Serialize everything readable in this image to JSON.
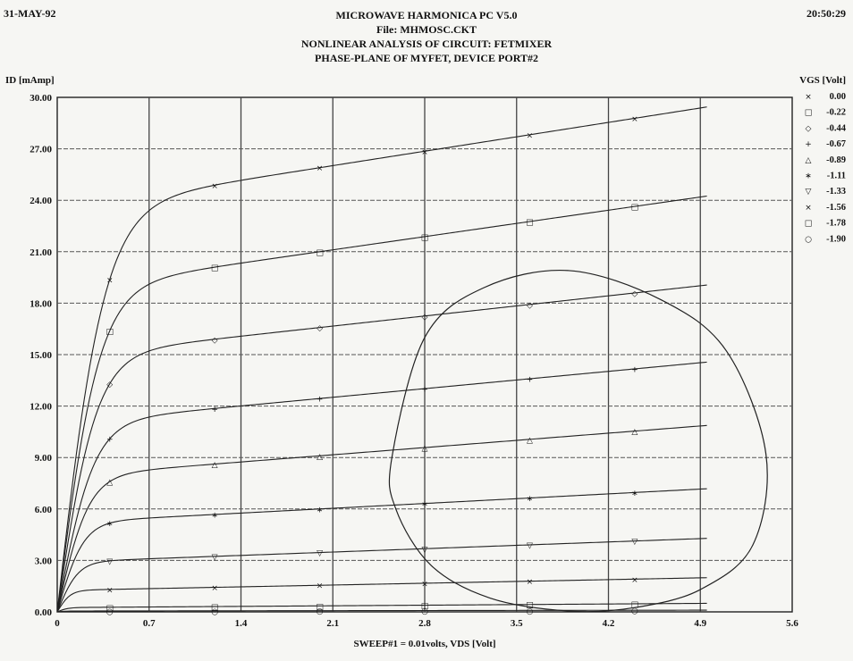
{
  "header": {
    "date": "31-MAY-92",
    "time": "20:50:29",
    "line1": "MICROWAVE HARMONICA PC V5.0",
    "line2": "File: MHMOSC.CKT",
    "line3": "NONLINEAR ANALYSIS OF CIRCUIT: FETMIXER",
    "line4": "PHASE-PLANE OF MYFET, DEVICE PORT#2"
  },
  "chart_data": {
    "type": "line",
    "title": "PHASE-PLANE OF MYFET, DEVICE PORT#2",
    "ylabel": "ID [mAmp]",
    "xlabel": "SWEEP#1 = 0.01volts, VDS [Volt]",
    "legend_title": "VGS [Volt]",
    "legend_position": "right",
    "grid": true,
    "xlim": [
      0,
      5.6
    ],
    "ylim": [
      0,
      30
    ],
    "x_ticks": [
      "0",
      "0.7",
      "1.4",
      "2.1",
      "2.8",
      "3.5",
      "4.2",
      "4.9",
      "5.6"
    ],
    "y_ticks": [
      "0.00",
      "3.00",
      "6.00",
      "9.00",
      "12.00",
      "15.00",
      "18.00",
      "21.00",
      "24.00",
      "27.00",
      "30.00"
    ],
    "marker_x": [
      0.4,
      1.2,
      2.0,
      2.8,
      3.6,
      4.4
    ],
    "series": [
      {
        "name": "0.00",
        "marker": "×",
        "isat": 23.5,
        "slope": 1.2,
        "vk": 0.36
      },
      {
        "name": "-0.22",
        "marker": "□",
        "isat": 18.8,
        "slope": 1.1,
        "vk": 0.32
      },
      {
        "name": "-0.44",
        "marker": "◇",
        "isat": 14.9,
        "slope": 0.84,
        "vk": 0.3
      },
      {
        "name": "-0.67",
        "marker": "+",
        "isat": 11.0,
        "slope": 0.72,
        "vk": 0.28
      },
      {
        "name": "-0.89",
        "marker": "△",
        "isat": 7.9,
        "slope": 0.6,
        "vk": 0.24
      },
      {
        "name": "-1.11",
        "marker": "∗",
        "isat": 5.2,
        "slope": 0.4,
        "vk": 0.2
      },
      {
        "name": "-1.33",
        "marker": "▽",
        "isat": 2.9,
        "slope": 0.28,
        "vk": 0.16
      },
      {
        "name": "-1.56",
        "marker": "×",
        "isat": 1.25,
        "slope": 0.15,
        "vk": 0.1
      },
      {
        "name": "-1.78",
        "marker": "□",
        "isat": 0.25,
        "slope": 0.05,
        "vk": 0.08
      },
      {
        "name": "-1.90",
        "marker": "○",
        "isat": 0.05,
        "slope": 0.01,
        "vk": 0.06
      }
    ],
    "loadline_loop": {
      "x": [
        2.8,
        3.25,
        3.9,
        4.6,
        5.1,
        5.4,
        5.3,
        4.9,
        4.4,
        3.9,
        3.3,
        2.85,
        2.58,
        2.55,
        2.8
      ],
      "y": [
        16.0,
        18.9,
        19.9,
        18.2,
        15.2,
        9.2,
        3.9,
        1.3,
        0.25,
        0.05,
        0.8,
        2.7,
        6.0,
        9.0,
        16.0
      ]
    }
  }
}
